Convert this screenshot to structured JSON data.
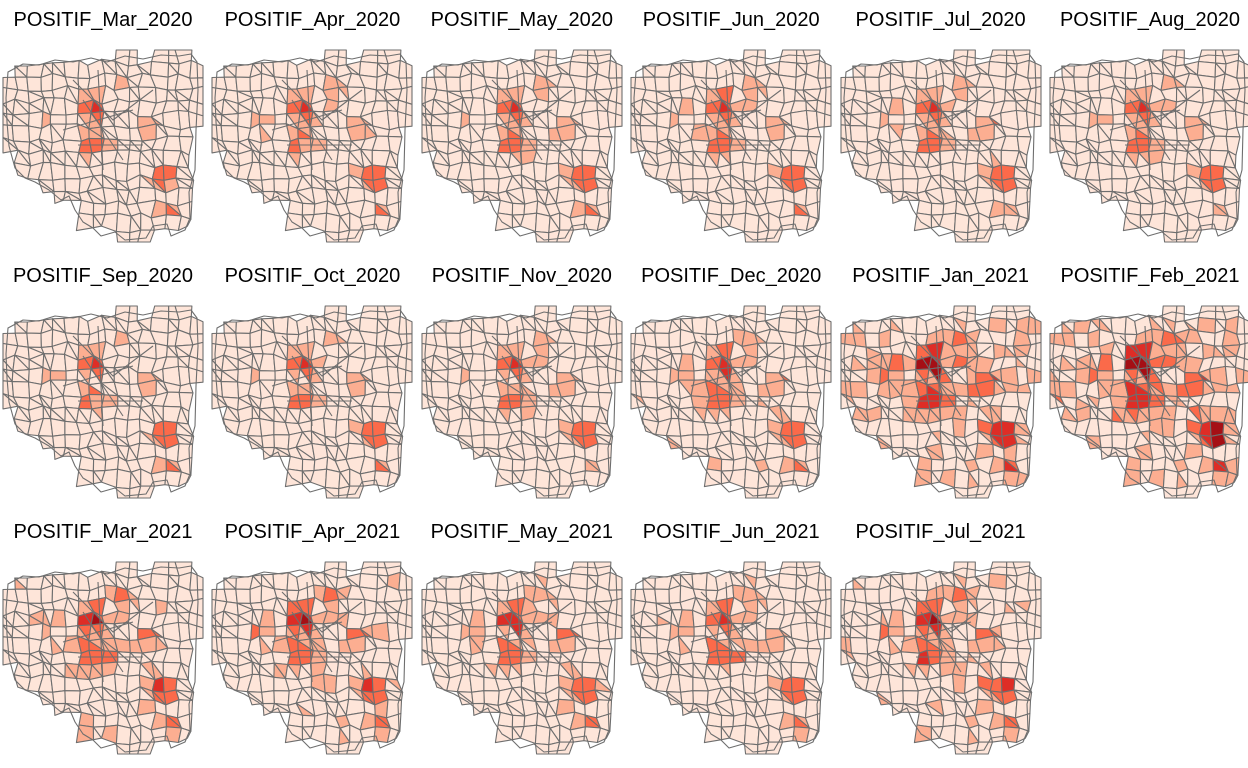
{
  "figure": {
    "panels": [
      {
        "title": "POSITIF_Mar_2020",
        "intensity": 0.15
      },
      {
        "title": "POSITIF_Apr_2020",
        "intensity": 0.17
      },
      {
        "title": "POSITIF_May_2020",
        "intensity": 0.16
      },
      {
        "title": "POSITIF_Jun_2020",
        "intensity": 0.18
      },
      {
        "title": "POSITIF_Jul_2020",
        "intensity": 0.18
      },
      {
        "title": "POSITIF_Aug_2020",
        "intensity": 0.17
      },
      {
        "title": "POSITIF_Sep_2020",
        "intensity": 0.14
      },
      {
        "title": "POSITIF_Oct_2020",
        "intensity": 0.16
      },
      {
        "title": "POSITIF_Nov_2020",
        "intensity": 0.15
      },
      {
        "title": "POSITIF_Dec_2020",
        "intensity": 0.22
      },
      {
        "title": "POSITIF_Jan_2021",
        "intensity": 0.34
      },
      {
        "title": "POSITIF_Feb_2021",
        "intensity": 0.38
      },
      {
        "title": "POSITIF_Mar_2021",
        "intensity": 0.24
      },
      {
        "title": "POSITIF_Apr_2021",
        "intensity": 0.25
      },
      {
        "title": "POSITIF_May_2021",
        "intensity": 0.22
      },
      {
        "title": "POSITIF_Jun_2021",
        "intensity": 0.2
      },
      {
        "title": "POSITIF_Jul_2021",
        "intensity": 0.26
      }
    ],
    "colors": {
      "fill_light": "#fee5d9",
      "fill_mid": "#fcae91",
      "fill_high": "#fb6a4a",
      "fill_max": "#de2d26",
      "fill_peak": "#a50f15",
      "border": "#6e6e6e",
      "background": "#ffffff"
    }
  }
}
